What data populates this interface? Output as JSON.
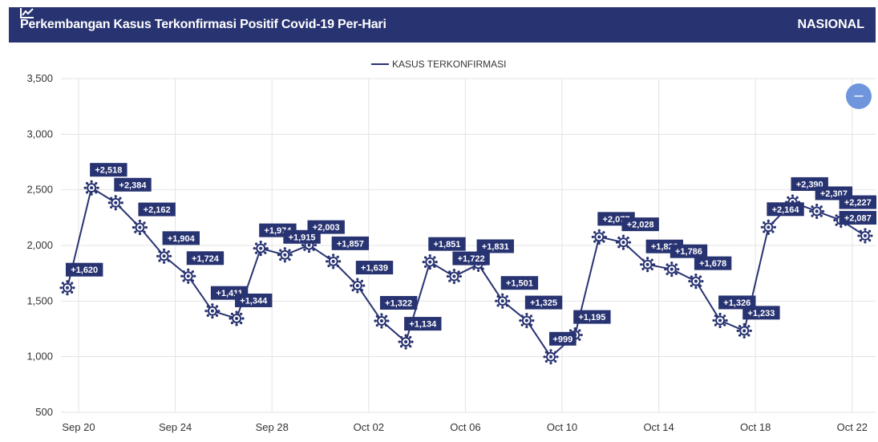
{
  "header": {
    "title": "Perkembangan Kasus Terkonfirmasi Positif Covid-19 Per-Hari",
    "scope": "NASIONAL",
    "icon": "line-chart-icon"
  },
  "zoom_button": {
    "label": "–",
    "icon": "minus-icon"
  },
  "colors": {
    "header_bg": "#283371",
    "series": "#283371",
    "zoom": "#6f95dc",
    "grid": "#e3e3e3"
  },
  "chart_data": {
    "type": "line",
    "title": "",
    "legend_position": "top-center",
    "grid": true,
    "ylim": [
      500,
      3500
    ],
    "y_ticks": [
      "500",
      "1,000",
      "1,500",
      "2,000",
      "2,500",
      "3,000",
      "3,500"
    ],
    "x_ticks": [
      "Sep 20",
      "Sep 24",
      "Sep 28",
      "Oct 02",
      "Oct 06",
      "Oct 10",
      "Oct 14",
      "Oct 18",
      "Oct 22"
    ],
    "series": [
      {
        "name": "KASUS TERKONFIRMASI",
        "x": [
          "Sep 20",
          "Sep 21",
          "Sep 22",
          "Sep 23",
          "Sep 24",
          "Sep 25",
          "Sep 26",
          "Sep 27",
          "Sep 28",
          "Sep 29",
          "Sep 30",
          "Oct 01",
          "Oct 02",
          "Oct 03",
          "Oct 04",
          "Oct 05",
          "Oct 06",
          "Oct 07",
          "Oct 08",
          "Oct 09",
          "Oct 10",
          "Oct 11",
          "Oct 12",
          "Oct 13",
          "Oct 14",
          "Oct 15",
          "Oct 16",
          "Oct 17",
          "Oct 18",
          "Oct 19",
          "Oct 20",
          "Oct 21",
          "Oct 22"
        ],
        "values": [
          1620,
          2518,
          2384,
          2162,
          1904,
          1724,
          1411,
          1344,
          1974,
          1915,
          2003,
          1857,
          1639,
          1322,
          1134,
          1851,
          1722,
          1831,
          1501,
          1325,
          999,
          1195,
          2077,
          2028,
          1829,
          1786,
          1678,
          1326,
          1233,
          2164,
          2390,
          2307,
          2227
        ],
        "labels": [
          "+1,620",
          "+2,518",
          "+2,384",
          "+2,162",
          "+1,904",
          "+1,724",
          "+1,411",
          "+1,344",
          "+1,974",
          "+1,915",
          "+2,003",
          "+1,857",
          "+1,639",
          "+1,322",
          "+1,134",
          "+1,851",
          "+1,722",
          "+1,831",
          "+1,501",
          "+1,325",
          "+999",
          "+1,195",
          "+2,077",
          "+2,028",
          "+1,829",
          "+1,786",
          "+1,678",
          "+1,326",
          "+1,233",
          "+2,164",
          "+2,390",
          "+2,307",
          "+2,227"
        ]
      }
    ],
    "extra_point": {
      "x": "Oct 23",
      "value": 2087,
      "label": "+2,087"
    }
  }
}
